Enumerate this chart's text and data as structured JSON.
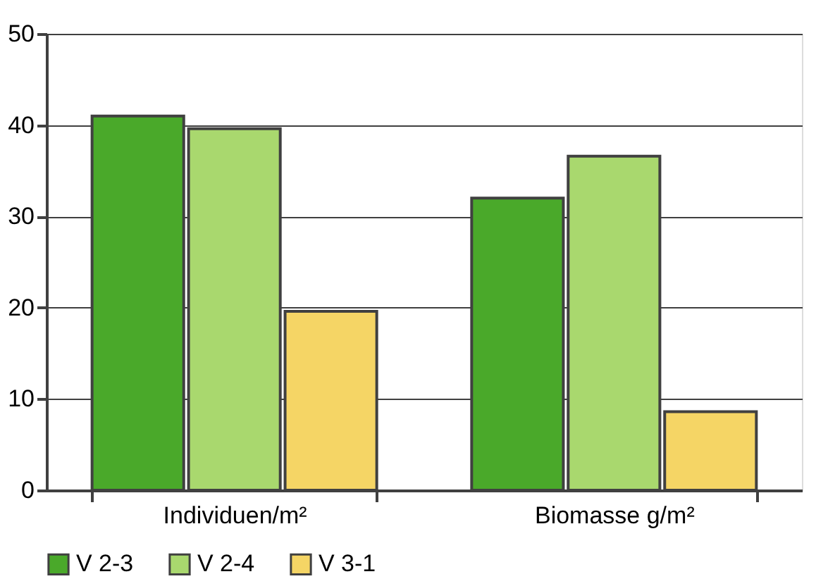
{
  "chart_data": {
    "type": "bar",
    "categories": [
      "Individuen/m²",
      "Biomasse g/m²"
    ],
    "series": [
      {
        "name": "V 2-3",
        "color": "#4aa92a",
        "values": [
          41,
          32
        ]
      },
      {
        "name": "V 2-4",
        "color": "#a9d86e",
        "values": [
          39.6,
          36.6
        ]
      },
      {
        "name": "V 3-1",
        "color": "#f5d565",
        "values": [
          19.6,
          8.6
        ]
      }
    ],
    "ylim": [
      0,
      50
    ],
    "yticks": [
      0,
      10,
      20,
      30,
      40,
      50
    ],
    "grid": "y",
    "legend": "bottom"
  }
}
